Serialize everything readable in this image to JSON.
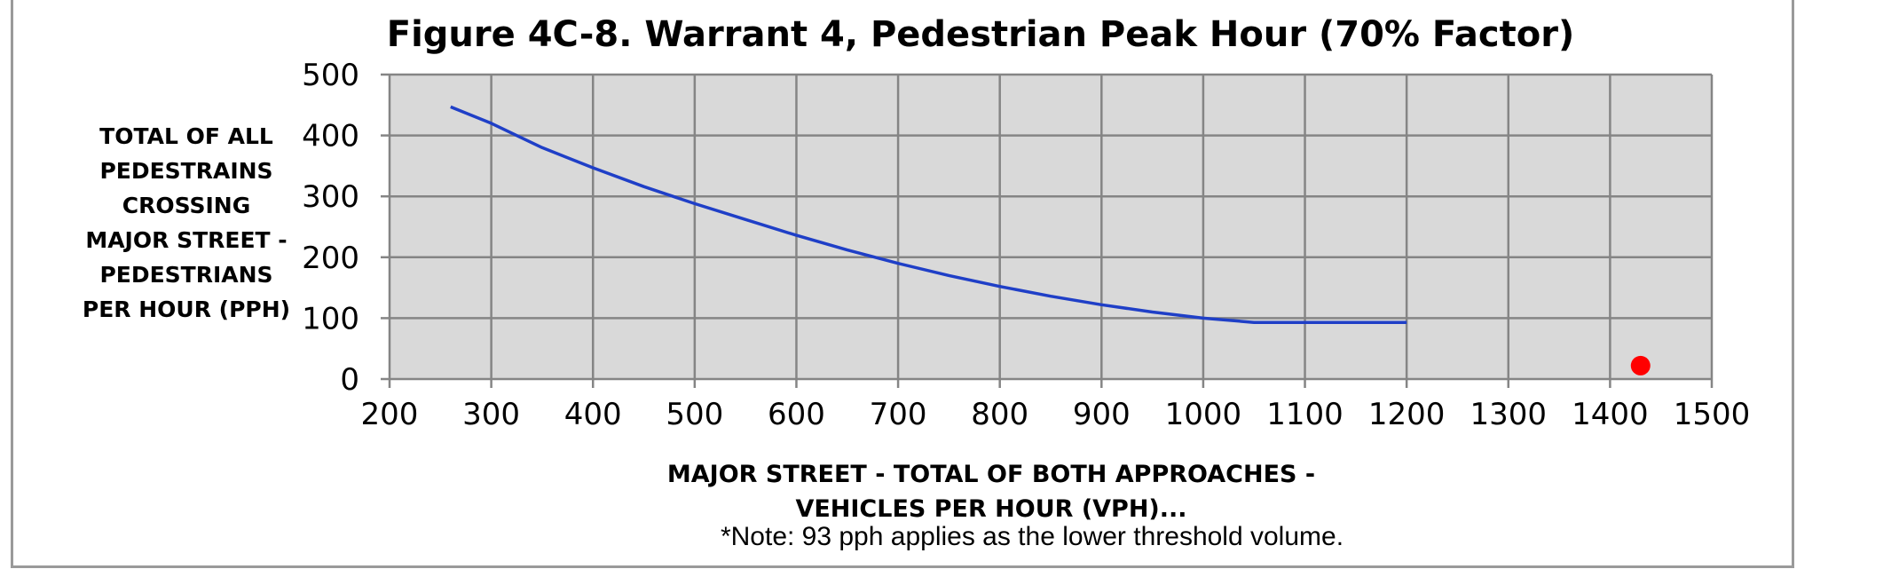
{
  "chart_data": {
    "type": "line",
    "title": "Figure 4C-8. Warrant 4, Pedestrian Peak Hour  (70% Factor)",
    "ylabel_lines": [
      "TOTAL OF ALL",
      "PEDESTRAINS",
      "CROSSING",
      "MAJOR STREET -",
      "PEDESTRIANS",
      "PER HOUR (PPH)"
    ],
    "xlabel_lines": [
      "MAJOR STREET - TOTAL OF BOTH APPROACHES -",
      "VEHICLES PER HOUR (VPH)..."
    ],
    "note": "*Note: 93 pph applies as the lower threshold volume.",
    "xlim": [
      200,
      1500
    ],
    "ylim": [
      0,
      500
    ],
    "x_ticks": [
      200,
      300,
      400,
      500,
      600,
      700,
      800,
      900,
      1000,
      1100,
      1200,
      1300,
      1400,
      1500
    ],
    "y_ticks": [
      0,
      100,
      200,
      300,
      400,
      500
    ],
    "grid": true,
    "series": [
      {
        "kind": "line",
        "color": "#1f3fc7",
        "x": [
          260,
          300,
          350,
          400,
          450,
          500,
          550,
          600,
          650,
          700,
          750,
          800,
          850,
          900,
          950,
          1000,
          1050,
          1100,
          1150,
          1200
        ],
        "y": [
          447,
          420,
          380,
          347,
          316,
          288,
          262,
          236,
          212,
          190,
          170,
          152,
          136,
          122,
          110,
          100,
          93,
          93,
          93,
          93
        ]
      },
      {
        "kind": "scatter",
        "color": "#ff0000",
        "x": [
          1430
        ],
        "y": [
          22
        ]
      }
    ]
  }
}
